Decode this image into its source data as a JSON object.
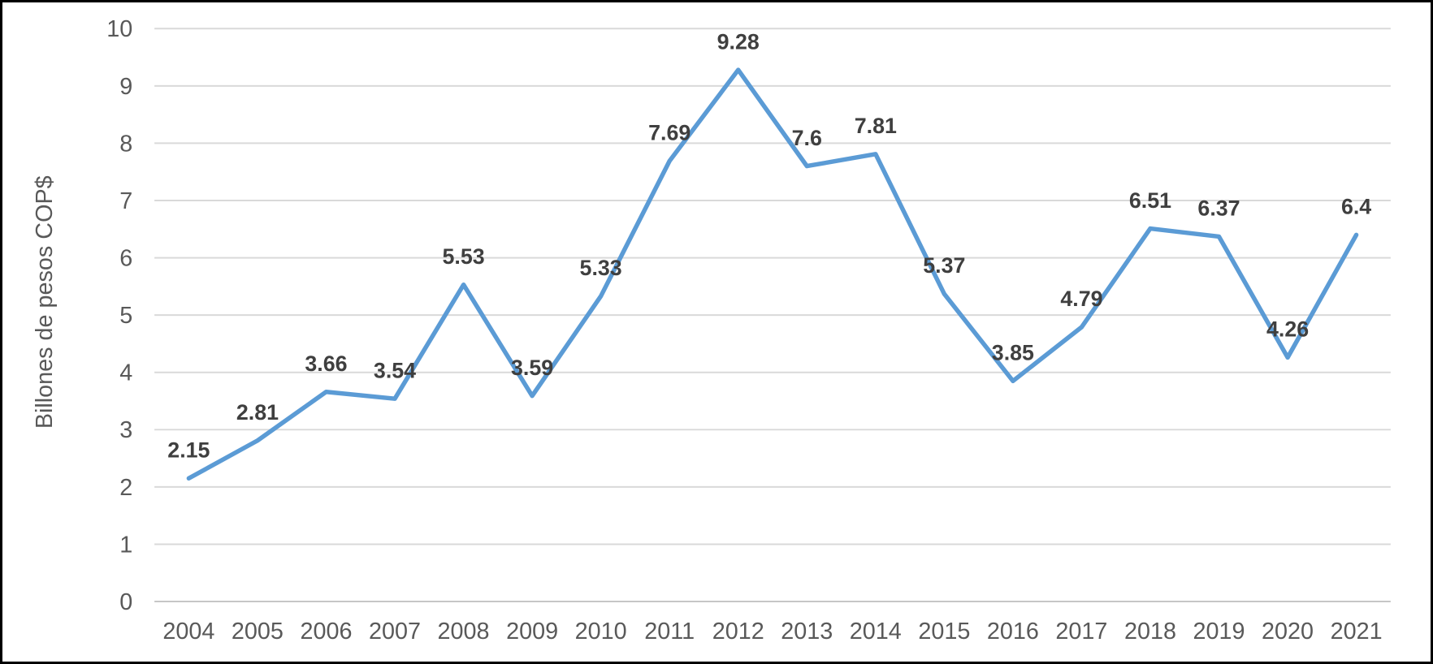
{
  "chart_data": {
    "type": "line",
    "categories": [
      "2004",
      "2005",
      "2006",
      "2007",
      "2008",
      "2009",
      "2010",
      "2011",
      "2012",
      "2013",
      "2014",
      "2015",
      "2016",
      "2017",
      "2018",
      "2019",
      "2020",
      "2021"
    ],
    "values": [
      2.15,
      2.81,
      3.66,
      3.54,
      5.53,
      3.59,
      5.33,
      7.69,
      9.28,
      7.6,
      7.81,
      5.37,
      3.85,
      4.79,
      6.51,
      6.37,
      4.26,
      6.4
    ],
    "point_labels": [
      "2.15",
      "2.81",
      "3.66",
      "3.54",
      "5.53",
      "3.59",
      "5.33",
      "7.69",
      "9.28",
      "7.6",
      "7.81",
      "5.37",
      "3.85",
      "4.79",
      "6.51",
      "6.37",
      "4.26",
      "6.4"
    ],
    "title": "",
    "xlabel": "",
    "ylabel": "Billones de pesos COP$",
    "ylim": [
      0,
      10
    ],
    "ytick_step": 1,
    "yticks": [
      "0",
      "1",
      "2",
      "3",
      "4",
      "5",
      "6",
      "7",
      "8",
      "9",
      "10"
    ],
    "grid": true,
    "legend": "none",
    "colors": {
      "line": "#5B9BD5",
      "data_label": "#3F3F3F",
      "axis_text": "#595959",
      "gridline": "#D9D9D9",
      "axis_line": "#C6C6C6",
      "background": "#FFFFFF",
      "border": "#000000"
    }
  }
}
